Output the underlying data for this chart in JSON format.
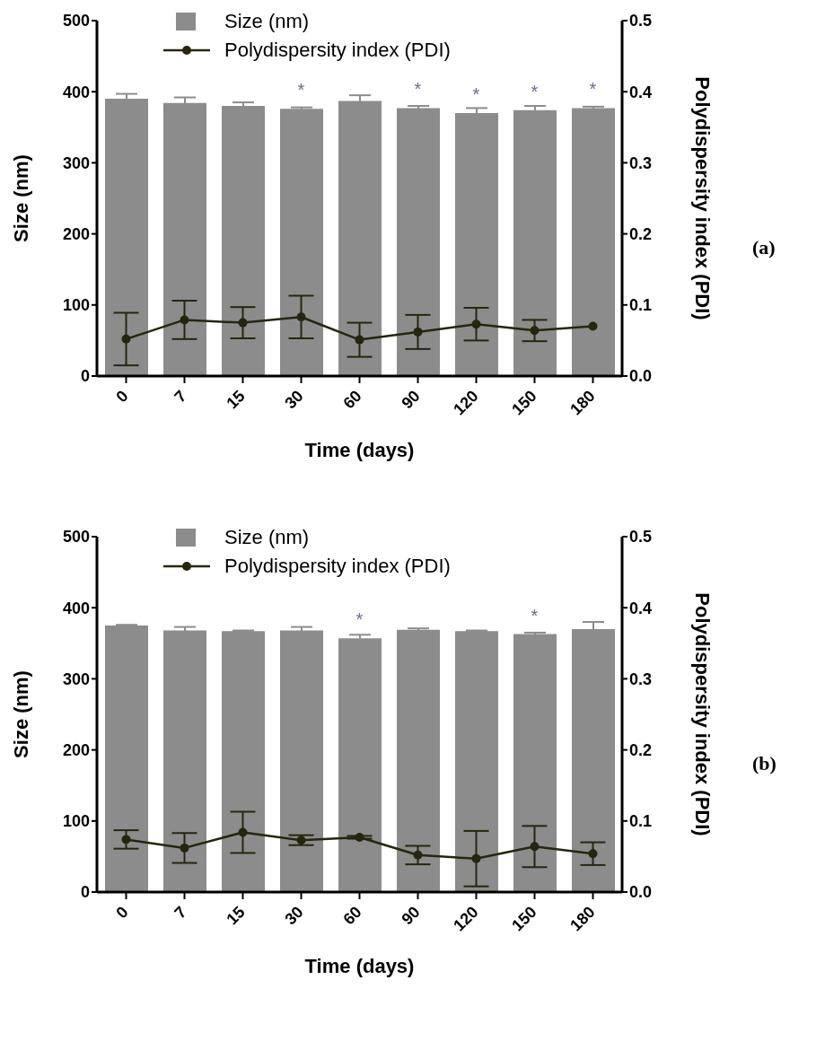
{
  "chart_data": [
    {
      "type": "bar",
      "categories": [
        "0",
        "7",
        "15",
        "30",
        "60",
        "90",
        "120",
        "150",
        "180"
      ],
      "xlabel": "Time (days)",
      "ylabel": "Size (nm)",
      "y2label": "Polydispersity index (PDI)",
      "series": [
        {
          "name": "Size (nm)",
          "color": "#8c8c8c",
          "values": [
            390,
            384,
            380,
            376,
            387,
            377,
            370,
            374,
            377
          ],
          "errors": [
            7,
            8,
            5,
            2,
            8,
            3,
            7,
            6,
            2
          ]
        },
        {
          "name": "Polydispersity index (PDI)",
          "type": "line",
          "axis": "y2",
          "color": "#262610",
          "values": [
            0.052,
            0.079,
            0.075,
            0.083,
            0.051,
            0.062,
            0.073,
            0.064,
            0.07
          ],
          "errors": [
            0.037,
            0.027,
            0.022,
            0.03,
            0.024,
            0.024,
            0.023,
            0.015,
            0
          ]
        }
      ],
      "ylim": [
        0,
        500
      ],
      "yticks": [
        0,
        100,
        200,
        300,
        400,
        500
      ],
      "y2lim": [
        0,
        0.5
      ],
      "y2ticks": [
        {
          "value": 0,
          "label": "0.0"
        },
        0.1,
        0.2,
        0.3,
        0.4,
        0.5
      ],
      "legend": "top left",
      "grid": false,
      "marker": "circle",
      "line_style": "solid",
      "annotations": [
        {
          "text": "*",
          "x": "30",
          "y": 376
        },
        {
          "text": "*",
          "x": "90",
          "y": 377
        },
        {
          "text": "*",
          "x": "120",
          "y": 370
        },
        {
          "text": "*",
          "x": "150",
          "y": 374
        },
        {
          "text": "*",
          "x": "180",
          "y": 377
        },
        "(a)"
      ]
    },
    {
      "type": "bar",
      "categories": [
        "0",
        "7",
        "15",
        "30",
        "60",
        "90",
        "120",
        "150",
        "180"
      ],
      "xlabel": "Time (days)",
      "ylabel": "Size (nm)",
      "y2label": "Polydispersity index (PDI)",
      "series": [
        {
          "name": "Size (nm)",
          "color": "#8c8c8c",
          "values": [
            375,
            368,
            367,
            368,
            357,
            369,
            367,
            363,
            370
          ],
          "errors": [
            1,
            5,
            1,
            5,
            5,
            2,
            1,
            2,
            10
          ]
        },
        {
          "name": "Polydispersity index (PDI)",
          "type": "line",
          "axis": "y2",
          "color": "#262610",
          "values": [
            0.074,
            0.062,
            0.084,
            0.073,
            0.077,
            0.052,
            0.047,
            0.064,
            0.054
          ],
          "errors": [
            0.013,
            0.021,
            0.029,
            0.007,
            0.002,
            0.013,
            0.039,
            0.029,
            0.016
          ]
        }
      ],
      "ylim": [
        0,
        500
      ],
      "yticks": [
        0,
        100,
        200,
        300,
        400,
        500
      ],
      "y2lim": [
        0,
        0.5
      ],
      "y2ticks": [
        {
          "value": 0,
          "label": "0.0"
        },
        0.1,
        0.2,
        0.3,
        0.4,
        0.5
      ],
      "legend": "top left",
      "grid": false,
      "marker": "circle",
      "line_style": "solid",
      "annotations": [
        {
          "text": "*",
          "x": "60",
          "y": 357
        },
        {
          "text": "*",
          "x": "150",
          "y": 363
        },
        "(b)"
      ]
    }
  ]
}
